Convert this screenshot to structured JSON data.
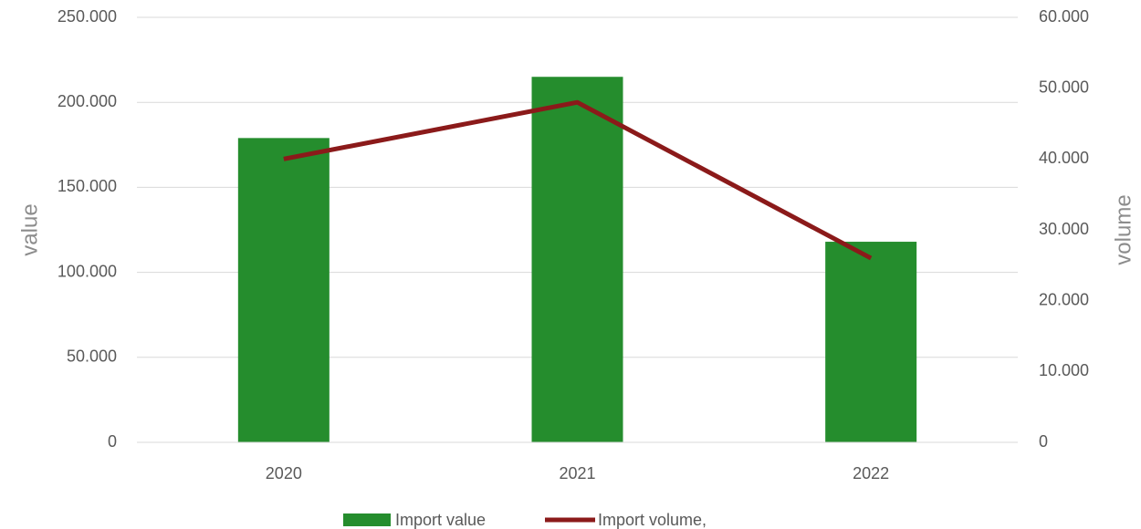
{
  "chart_data": {
    "type": "combo",
    "categories": [
      "2020",
      "2021",
      "2022"
    ],
    "series": [
      {
        "name": "Import value",
        "type": "bar",
        "color": "#258d2d",
        "values": [
          179000,
          215000,
          118000
        ]
      },
      {
        "name": "Import volume,",
        "type": "line",
        "axis": "y2",
        "color": "#8b1a1a",
        "values": [
          40000,
          48000,
          26000
        ]
      }
    ],
    "ylabel": "value",
    "y2label": "volume",
    "ylim": [
      0,
      250000
    ],
    "yticks": [
      0,
      {
        "value": 50000,
        "label": "50.000"
      },
      {
        "value": 100000,
        "label": "100.000"
      },
      {
        "value": 150000,
        "label": "150.000"
      },
      {
        "value": 200000,
        "label": "200.000"
      },
      {
        "value": 250000,
        "label": "250.000"
      }
    ],
    "y2lim": [
      0,
      60000
    ],
    "y2ticks": [
      0,
      {
        "value": 10000,
        "label": "10.000"
      },
      {
        "value": 20000,
        "label": "20.000"
      },
      {
        "value": 30000,
        "label": "30.000"
      },
      {
        "value": 40000,
        "label": "40.000"
      },
      {
        "value": 50000,
        "label": "50.000"
      },
      {
        "value": 60000,
        "label": "60.000"
      }
    ],
    "grid": true,
    "legend": "bottom"
  }
}
